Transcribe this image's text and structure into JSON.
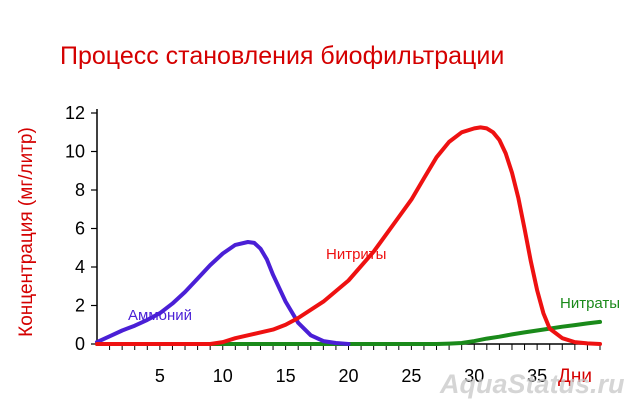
{
  "chart_data": {
    "type": "line",
    "title": "Процесс становления биофильтрации",
    "ylabel": "Концентрация (мг/литр)",
    "xlabel": "Дни",
    "xlim": [
      0,
      40
    ],
    "ylim": [
      0,
      12
    ],
    "x_ticks": [
      5,
      10,
      15,
      20,
      25,
      30,
      35
    ],
    "y_ticks": [
      0,
      2,
      4,
      6,
      8,
      10,
      12
    ],
    "series": [
      {
        "name": "Аммоний",
        "color": "#4a1fd6",
        "x": [
          0,
          1,
          2,
          3,
          4,
          5,
          6,
          7,
          8,
          9,
          10,
          11,
          12,
          12.5,
          13,
          13.5,
          14,
          15,
          16,
          17,
          18,
          19,
          20
        ],
        "y": [
          0.1,
          0.4,
          0.7,
          0.95,
          1.25,
          1.6,
          2.1,
          2.7,
          3.4,
          4.1,
          4.7,
          5.15,
          5.3,
          5.25,
          4.95,
          4.4,
          3.6,
          2.2,
          1.1,
          0.45,
          0.15,
          0.05,
          0
        ]
      },
      {
        "name": "Нитриты",
        "color": "#ee1111",
        "x": [
          0,
          9,
          10,
          11,
          12,
          13,
          14,
          15,
          16,
          18,
          20,
          22,
          24,
          25,
          26,
          27,
          28,
          29,
          30,
          30.5,
          31,
          31.5,
          32,
          32.5,
          33,
          33.5,
          34,
          34.5,
          35,
          35.5,
          36,
          37,
          38,
          39,
          40
        ],
        "y": [
          0,
          0,
          0.1,
          0.3,
          0.45,
          0.6,
          0.75,
          1.0,
          1.35,
          2.2,
          3.3,
          4.8,
          6.6,
          7.5,
          8.6,
          9.7,
          10.5,
          11.0,
          11.2,
          11.25,
          11.2,
          11.0,
          10.6,
          9.9,
          8.9,
          7.6,
          6.0,
          4.3,
          2.8,
          1.6,
          0.8,
          0.3,
          0.1,
          0.03,
          0
        ]
      },
      {
        "name": "Нитраты",
        "color": "#1a8a1a",
        "x": [
          0,
          27,
          28,
          29,
          30,
          31,
          32,
          33,
          34,
          35,
          36,
          37,
          38,
          39,
          40
        ],
        "y": [
          0,
          0,
          0.02,
          0.05,
          0.15,
          0.28,
          0.38,
          0.5,
          0.6,
          0.7,
          0.8,
          0.9,
          0.98,
          1.07,
          1.15
        ]
      }
    ]
  },
  "watermark": "AquaStatus.ru"
}
